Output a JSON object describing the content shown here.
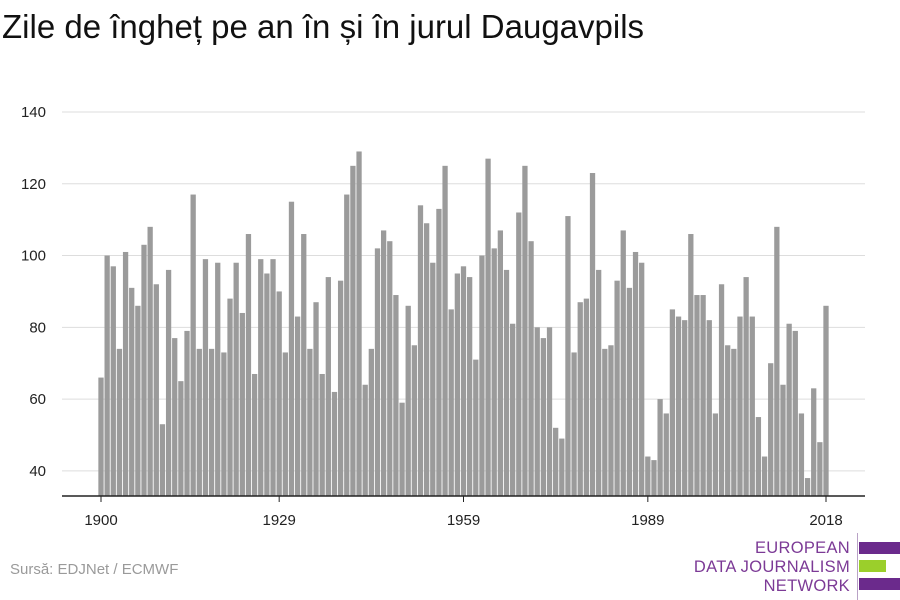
{
  "title": "Zile de îngheț pe an în și în jurul Daugavpils",
  "source": "Sursă: EDJNet / ECMWF",
  "logo": {
    "line1": "EUROPEAN",
    "line2": "DATA JOURNALISM",
    "line3": "NETWORK"
  },
  "colors": {
    "bar": "#9b9b9b",
    "grid": "#dddddd",
    "axis": "#222222",
    "logo_purple": "#6b2a8c",
    "logo_green": "#9bcf2b"
  },
  "chart_data": {
    "type": "bar",
    "title": "Zile de îngheț pe an în și în jurul Daugavpils",
    "xlabel": "",
    "ylabel": "",
    "ylim": [
      33,
      140
    ],
    "xlim": [
      1900,
      2018
    ],
    "grid": true,
    "legend": "none",
    "y_ticks": [
      40,
      60,
      80,
      100,
      120,
      140
    ],
    "x_ticks": [
      1900,
      1929,
      1959,
      1989,
      2018
    ],
    "series": [
      {
        "x": [
          1900,
          1901,
          1902,
          1903,
          1904,
          1905,
          1906,
          1907,
          1908,
          1909,
          1910,
          1911,
          1912,
          1913,
          1914,
          1915,
          1916,
          1917,
          1918,
          1919,
          1920,
          1921,
          1922,
          1923,
          1924,
          1925,
          1926,
          1927,
          1928,
          1929,
          1930,
          1931,
          1932,
          1933,
          1934,
          1935,
          1936,
          1937,
          1938,
          1939,
          1940,
          1941,
          1942,
          1943,
          1944,
          1945,
          1946,
          1947,
          1948,
          1949,
          1950,
          1951,
          1952,
          1953,
          1954,
          1955,
          1956,
          1957,
          1958,
          1959,
          1960,
          1961,
          1962,
          1963,
          1964,
          1965,
          1966,
          1967,
          1968,
          1969,
          1970,
          1971,
          1972,
          1973,
          1974,
          1975,
          1976,
          1977,
          1978,
          1979,
          1980,
          1981,
          1982,
          1983,
          1984,
          1985,
          1986,
          1987,
          1988,
          1989,
          1990,
          1991,
          1992,
          1993,
          1994,
          1995,
          1996,
          1997,
          1998,
          1999,
          2000,
          2001,
          2002,
          2003,
          2004,
          2005,
          2006,
          2007,
          2008,
          2009,
          2010,
          2011,
          2012,
          2013,
          2014,
          2015,
          2016,
          2017,
          2018
        ],
        "values": [
          66,
          100,
          97,
          74,
          101,
          91,
          86,
          103,
          108,
          92,
          53,
          96,
          77,
          65,
          79,
          117,
          74,
          99,
          74,
          98,
          73,
          88,
          98,
          84,
          106,
          67,
          99,
          95,
          99,
          90,
          73,
          115,
          83,
          106,
          74,
          87,
          67,
          94,
          62,
          93,
          117,
          125,
          129,
          64,
          74,
          102,
          107,
          104,
          89,
          59,
          86,
          75,
          114,
          109,
          98,
          113,
          125,
          85,
          95,
          97,
          94,
          71,
          100,
          127,
          102,
          107,
          96,
          81,
          112,
          125,
          104,
          80,
          77,
          80,
          52,
          49,
          111,
          73,
          87,
          88,
          123,
          96,
          74,
          75,
          93,
          107,
          91,
          101,
          98,
          44,
          43,
          60,
          56,
          85,
          83,
          82,
          106,
          89,
          89,
          82,
          56,
          92,
          75,
          74,
          83,
          94,
          83,
          55,
          44,
          70,
          108,
          64,
          81,
          79,
          56,
          38,
          63,
          48,
          86
        ]
      }
    ]
  }
}
